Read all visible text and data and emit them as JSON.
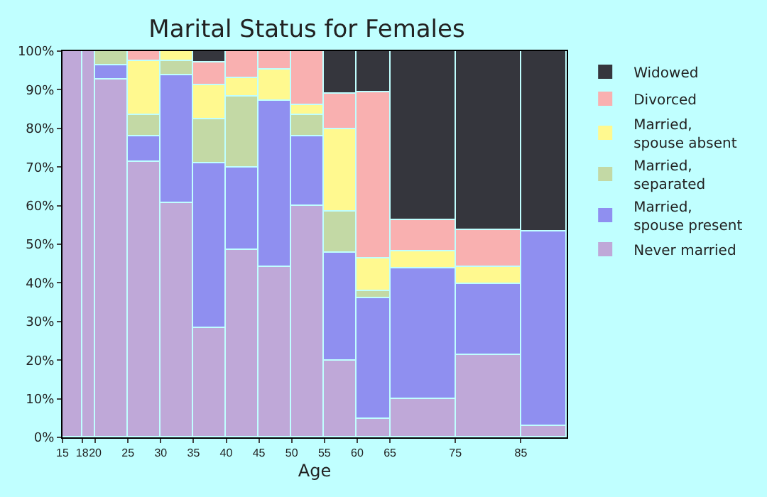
{
  "chart_data": {
    "type": "bar",
    "stacked": true,
    "title": "Marital Status for Females",
    "xlabel": "Age",
    "x": [
      16.5,
      19,
      22.5,
      27.5,
      32.5,
      37.5,
      42.5,
      47.5,
      52.5,
      57.5,
      62.5,
      70,
      80,
      88.5
    ],
    "xlim": [
      15,
      92
    ],
    "xticks": [
      15,
      18,
      20,
      25,
      30,
      35,
      40,
      45,
      50,
      55,
      60,
      65,
      75,
      85
    ],
    "ylim": [
      0,
      100
    ],
    "yticks": [
      {
        "value": 0,
        "label": "0%"
      },
      {
        "value": 10,
        "label": "10%"
      },
      {
        "value": 20,
        "label": "20%"
      },
      {
        "value": 30,
        "label": "30%"
      },
      {
        "value": 40,
        "label": "40%"
      },
      {
        "value": 50,
        "label": "50%"
      },
      {
        "value": 60,
        "label": "60%"
      },
      {
        "value": 70,
        "label": "70%"
      },
      {
        "value": 80,
        "label": "80%"
      },
      {
        "value": 90,
        "label": "90%"
      },
      {
        "value": 100,
        "label": "100%"
      }
    ],
    "legend": "right",
    "series": [
      {
        "name": "Never married",
        "color": "#bfa8d8",
        "values": [
          100,
          100,
          92.8,
          71.5,
          60.5,
          28.2,
          48.4,
          44.0,
          60.1,
          19.8,
          4.8,
          9.9,
          21.3,
          2.9
        ]
      },
      {
        "name": "Married, spouse present",
        "color": "#8f8ff0",
        "values": [
          null,
          null,
          3.7,
          6.6,
          33.4,
          42.6,
          21.3,
          43.3,
          17.7,
          27.9,
          31.1,
          33.7,
          18.3,
          50.3
        ]
      },
      {
        "name": "Married, separated",
        "color": "#c3d9a5",
        "values": [
          null,
          null,
          3.5,
          5.2,
          3.7,
          11.4,
          18.7,
          null,
          5.5,
          10.6,
          1.9,
          null,
          null,
          null
        ]
      },
      {
        "name": "Married, spouse absent",
        "color": "#fff98f",
        "values": [
          null,
          null,
          null,
          14.3,
          2.4,
          8.8,
          4.8,
          8.1,
          2.9,
          21.3,
          8.4,
          4.4,
          4.4,
          null
        ]
      },
      {
        "name": "Divorced",
        "color": "#f9b0b0",
        "values": [
          null,
          null,
          null,
          2.4,
          null,
          6.2,
          6.8,
          4.6,
          13.8,
          9.2,
          43.3,
          8.1,
          9.5,
          null
        ]
      },
      {
        "name": "Widowed",
        "color": "#35363d",
        "values": [
          null,
          null,
          null,
          null,
          null,
          2.8,
          null,
          null,
          null,
          11.2,
          10.5,
          43.9,
          46.5,
          46.8
        ]
      }
    ]
  }
}
